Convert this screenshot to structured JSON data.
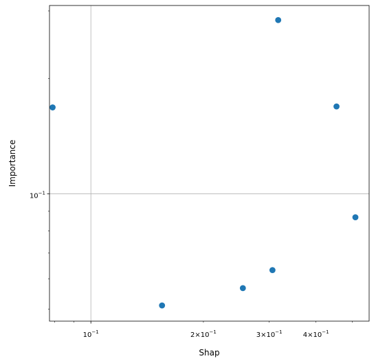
{
  "chart_data": {
    "type": "scatter",
    "title": "",
    "xlabel": "Shap",
    "ylabel": "Importance",
    "xscale": "log",
    "yscale": "log",
    "xlim": [
      0.0775,
      0.555
    ],
    "ylim": [
      0.0465,
      0.31
    ],
    "grid": true,
    "legend": "none",
    "colors": {
      "marker": "#1f77b4",
      "grid": "#b0b0b0",
      "axis": "#000000"
    },
    "x_major_ticks": [
      {
        "value": 0.1,
        "mantissa": "",
        "exp": "−1"
      }
    ],
    "x_minor_labeled_ticks": [
      {
        "value": 0.2,
        "mantissa": "2×",
        "exp": "−1"
      },
      {
        "value": 0.3,
        "mantissa": "3×",
        "exp": "−1"
      },
      {
        "value": 0.4,
        "mantissa": "4×",
        "exp": "−1"
      }
    ],
    "y_major_ticks": [
      {
        "value": 0.1,
        "mantissa": "",
        "exp": "−1"
      }
    ],
    "points": [
      {
        "x": 0.079,
        "y": 0.168
      },
      {
        "x": 0.155,
        "y": 0.0511
      },
      {
        "x": 0.255,
        "y": 0.0567
      },
      {
        "x": 0.306,
        "y": 0.0632
      },
      {
        "x": 0.317,
        "y": 0.284
      },
      {
        "x": 0.454,
        "y": 0.169
      },
      {
        "x": 0.51,
        "y": 0.0868
      }
    ]
  }
}
